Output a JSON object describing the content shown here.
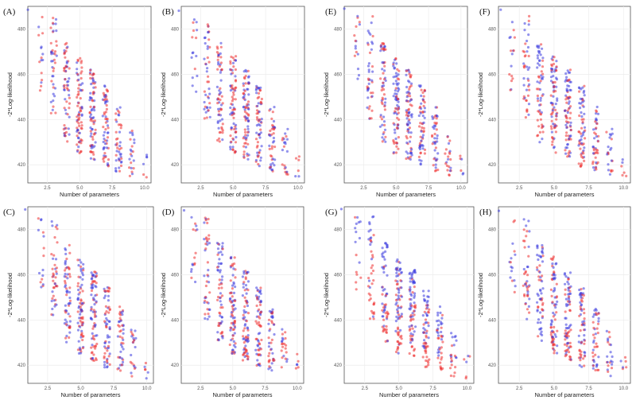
{
  "chart_data": [
    {
      "type": "scatter",
      "panel": "(A)",
      "xlabel": "Number of parameters",
      "ylabel": "-2*Log-likelihood",
      "xlim": [
        1,
        10.5
      ],
      "ylim": [
        412,
        490
      ],
      "xticks": [
        "2.5",
        "5.0",
        "7.5",
        "10.0"
      ],
      "yticks": [
        "420",
        "440",
        "460",
        "480"
      ],
      "series": [
        {
          "name": "blue",
          "color": "#3a3adf",
          "opacity": 0.55
        },
        {
          "name": "red",
          "color": "#ee3030",
          "opacity": 0.55
        }
      ],
      "red_weight_low": 0.55,
      "red_weight_high": 0.5,
      "seed": 11
    },
    {
      "type": "scatter",
      "panel": "(B)",
      "xlabel": "Number of parameters",
      "ylabel": "-2*Log-likelihood",
      "xlim": [
        1,
        10.5
      ],
      "ylim": [
        412,
        490
      ],
      "xticks": [
        "2.5",
        "5.0",
        "7.5",
        "10.0"
      ],
      "yticks": [
        "420",
        "440",
        "460",
        "480"
      ],
      "series": [
        {
          "name": "blue",
          "color": "#3a3adf",
          "opacity": 0.55
        },
        {
          "name": "red",
          "color": "#ee3030",
          "opacity": 0.55
        }
      ],
      "red_weight_low": 0.55,
      "red_weight_high": 0.5,
      "seed": 23
    },
    {
      "type": "scatter",
      "panel": "(E)",
      "xlabel": "Number of parameters",
      "ylabel": "-2*Log-likelihood",
      "xlim": [
        1,
        10.5
      ],
      "ylim": [
        412,
        490
      ],
      "xticks": [
        "2.5",
        "5.0",
        "7.5",
        "10.0"
      ],
      "yticks": [
        "420",
        "440",
        "460",
        "480"
      ],
      "series": [
        {
          "name": "blue",
          "color": "#3a3adf",
          "opacity": 0.55
        },
        {
          "name": "red",
          "color": "#ee3030",
          "opacity": 0.55
        }
      ],
      "red_weight_low": 0.5,
      "red_weight_high": 0.45,
      "seed": 37
    },
    {
      "type": "scatter",
      "panel": "(F)",
      "xlabel": "Number of parameters",
      "ylabel": "-2*Log-likelihood",
      "xlim": [
        1,
        10.5
      ],
      "ylim": [
        412,
        490
      ],
      "xticks": [
        "2.5",
        "5.0",
        "7.5",
        "10.0"
      ],
      "yticks": [
        "420",
        "440",
        "460",
        "480"
      ],
      "series": [
        {
          "name": "blue",
          "color": "#3a3adf",
          "opacity": 0.55
        },
        {
          "name": "red",
          "color": "#ee3030",
          "opacity": 0.55
        }
      ],
      "red_weight_low": 0.75,
      "red_weight_high": 0.25,
      "seed": 41
    },
    {
      "type": "scatter",
      "panel": "(C)",
      "xlabel": "Number of parameters",
      "ylabel": "-2*Log-likelihood",
      "xlim": [
        1,
        10.5
      ],
      "ylim": [
        412,
        490
      ],
      "xticks": [
        "2.5",
        "5.0",
        "7.5",
        "10.0"
      ],
      "yticks": [
        "420",
        "440",
        "460",
        "480"
      ],
      "series": [
        {
          "name": "blue",
          "color": "#3a3adf",
          "opacity": 0.55
        },
        {
          "name": "red",
          "color": "#ee3030",
          "opacity": 0.55
        }
      ],
      "red_weight_low": 0.55,
      "red_weight_high": 0.45,
      "seed": 53
    },
    {
      "type": "scatter",
      "panel": "(D)",
      "xlabel": "Number of parameters",
      "ylabel": "-2*Log-likelihood",
      "xlim": [
        1,
        10.5
      ],
      "ylim": [
        412,
        490
      ],
      "xticks": [
        "2.5",
        "5.0",
        "7.5",
        "10.0"
      ],
      "yticks": [
        "420",
        "440",
        "460",
        "480"
      ],
      "series": [
        {
          "name": "blue",
          "color": "#3a3adf",
          "opacity": 0.55
        },
        {
          "name": "red",
          "color": "#ee3030",
          "opacity": 0.55
        }
      ],
      "red_weight_low": 0.55,
      "red_weight_high": 0.45,
      "seed": 67
    },
    {
      "type": "scatter",
      "panel": "(G)",
      "xlabel": "Number of parameters",
      "ylabel": "-2*Log-likelihood",
      "xlim": [
        1,
        10.5
      ],
      "ylim": [
        412,
        490
      ],
      "xticks": [
        "2.5",
        "5.0",
        "7.5",
        "10.0"
      ],
      "yticks": [
        "420",
        "440",
        "460",
        "480"
      ],
      "series": [
        {
          "name": "blue",
          "color": "#3a3adf",
          "opacity": 0.55
        },
        {
          "name": "red",
          "color": "#ee3030",
          "opacity": 0.55
        }
      ],
      "red_weight_low": 0.97,
      "red_weight_high": 0.05,
      "seed": 79
    },
    {
      "type": "scatter",
      "panel": "(H)",
      "xlabel": "Number of parameters",
      "ylabel": "-2*Log-likelihood",
      "xlim": [
        1,
        10.5
      ],
      "ylim": [
        412,
        490
      ],
      "xticks": [
        "2.5",
        "5.0",
        "7.5",
        "10.0"
      ],
      "yticks": [
        "420",
        "440",
        "460",
        "480"
      ],
      "series": [
        {
          "name": "blue",
          "color": "#3a3adf",
          "opacity": 0.55
        },
        {
          "name": "red",
          "color": "#ee3030",
          "opacity": 0.55
        }
      ],
      "red_weight_low": 0.6,
      "red_weight_high": 0.4,
      "seed": 97
    }
  ]
}
